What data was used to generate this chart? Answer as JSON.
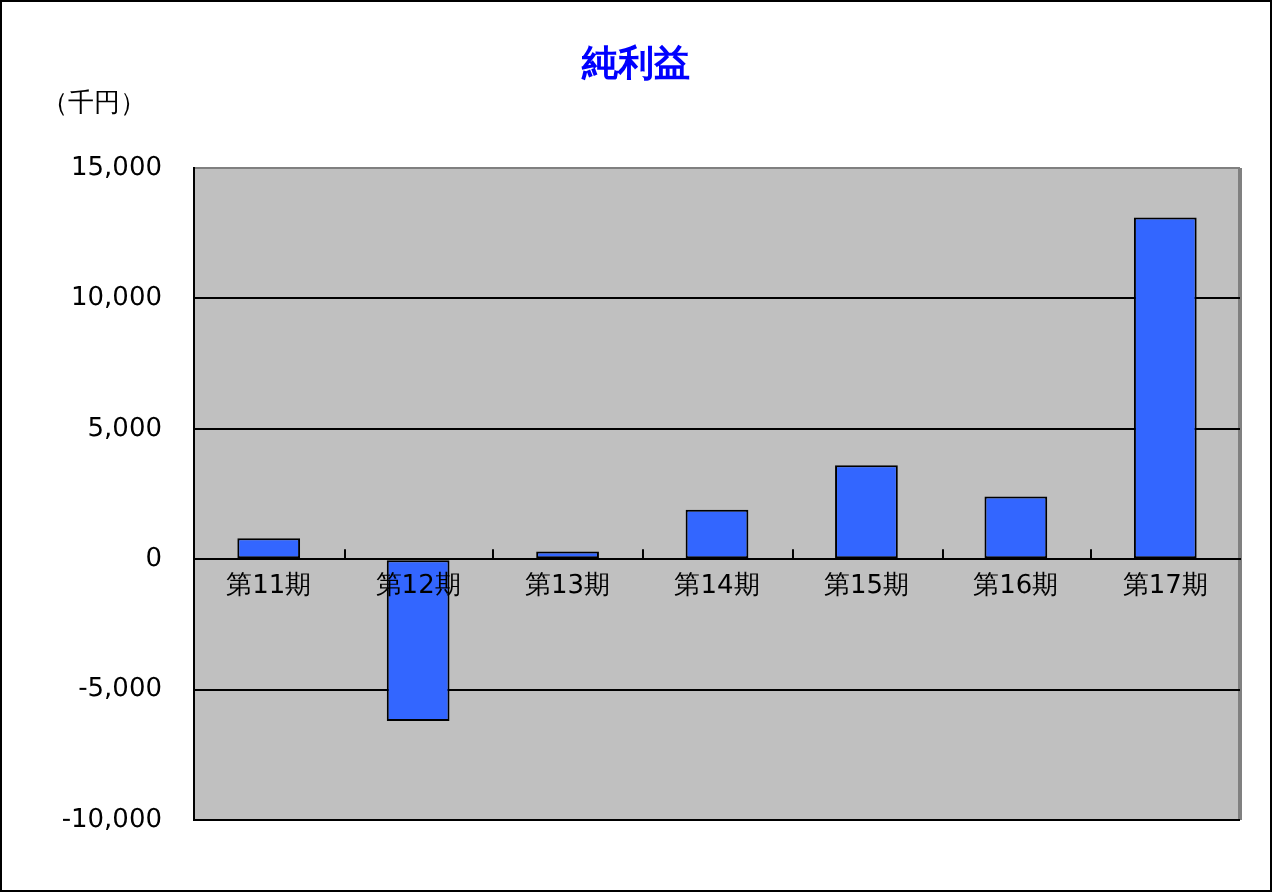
{
  "chart_data": {
    "type": "bar",
    "title": "純利益",
    "ylabel": "（千円）",
    "categories": [
      "第11期",
      "第12期",
      "第13期",
      "第14期",
      "第15期",
      "第16期",
      "第17期"
    ],
    "values": [
      800,
      -6200,
      300,
      1900,
      3600,
      2400,
      13100
    ],
    "color": "#3366ff",
    "ylim": [
      -10000,
      15000
    ],
    "yticks": [
      {
        "value": -10000,
        "label": "-10,000"
      },
      {
        "value": -5000,
        "label": "-5,000"
      },
      0,
      {
        "value": 5000,
        "label": "5,000"
      },
      {
        "value": 10000,
        "label": "10,000"
      },
      {
        "value": 15000,
        "label": "15,000"
      }
    ],
    "grid": "y"
  }
}
